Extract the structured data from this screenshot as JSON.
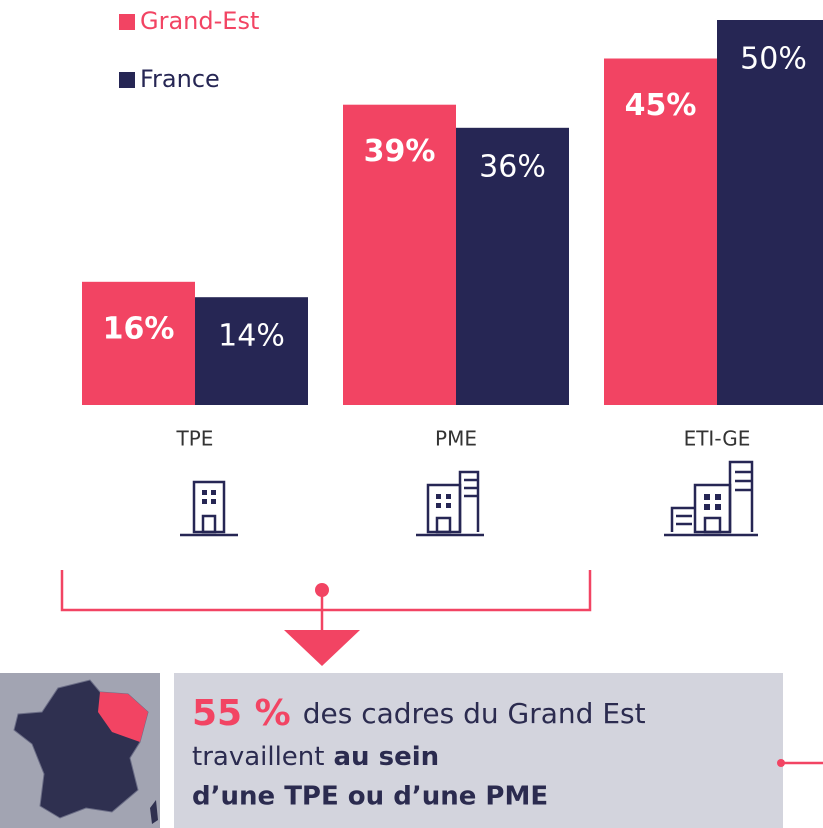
{
  "chart_data": {
    "type": "bar",
    "categories": [
      "TPE",
      "PME",
      "ETI-GE"
    ],
    "series": [
      {
        "name": "Grand-Est",
        "color": "#f24463",
        "values": [
          16,
          39,
          45
        ],
        "value_labels": [
          "16%",
          "39%",
          "45%"
        ]
      },
      {
        "name": "France",
        "color": "#262654",
        "values": [
          14,
          36,
          50
        ],
        "value_labels": [
          "14%",
          "36%",
          "50%"
        ]
      }
    ]
  },
  "callout": {
    "highlight": "55 %",
    "text1": "des cadres du Grand Est",
    "text2": "travaillent",
    "text2_bold": "au sein",
    "text3": "d’une TPE ou d’une PME"
  }
}
